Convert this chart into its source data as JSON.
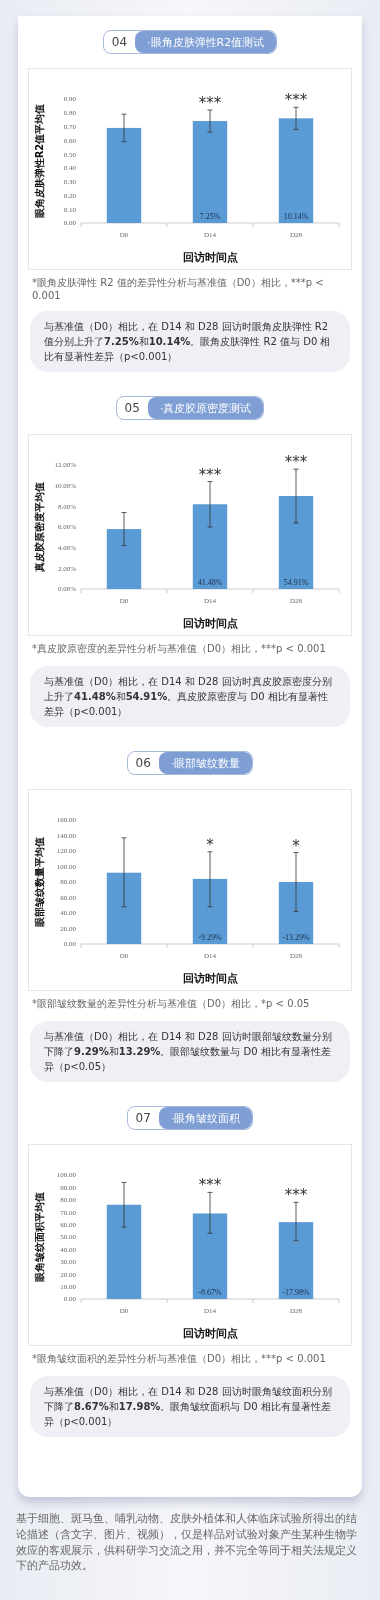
{
  "chart_data": [
    {
      "type": "bar",
      "subtitle": "04",
      "title": "·眼角皮肤弹性R2值测试",
      "ylabel": "眼角皮肤弹性R2值平均值",
      "xlabel": "回访时间点",
      "categories": [
        "D0",
        "D14",
        "D28"
      ],
      "values": [
        0.69,
        0.74,
        0.76
      ],
      "errors": [
        [
          0.59,
          0.79
        ],
        [
          0.66,
          0.82
        ],
        [
          0.68,
          0.84
        ]
      ],
      "color": "#5b9bd5",
      "ylim": [
        0,
        0.9
      ],
      "yticks": [
        {
          "value": 0,
          "label": "0.00"
        },
        {
          "value": 0.1,
          "label": "0.10"
        },
        {
          "value": 0.2,
          "label": "0.20"
        },
        {
          "value": 0.3,
          "label": "0.30"
        },
        {
          "value": 0.4,
          "label": "0.40"
        },
        {
          "value": 0.5,
          "label": "0.50"
        },
        {
          "value": 0.6,
          "label": "0.60"
        },
        {
          "value": 0.7,
          "label": "0.70"
        },
        {
          "value": 0.8,
          "label": "0.80"
        },
        {
          "value": 0.9,
          "label": "0.90"
        }
      ],
      "annotations": [
        {
          "text": "***",
          "x": "D14",
          "y": 0.82
        },
        {
          "text": "***",
          "x": "D28",
          "y": 0.84
        },
        {
          "text": "7.25%",
          "x": "D14",
          "y": 0
        },
        {
          "text": "10.14%",
          "x": "D28",
          "y": 0
        },
        "*眼角皮肤弹性 R2 值的差异性分析与基准值（D0）相比，***p < 0.001",
        "与基准值（D0）相比，在 D14 和 D28 回访时眼角皮肤弹性 R2 值分别上升了7.25%和10.14%。眼角皮肤弹性 R2 值与 D0 相比有显著性差异（p<0.001）"
      ]
    },
    {
      "type": "bar",
      "subtitle": "05",
      "title": "·真皮胶原密度测试",
      "ylabel": "真皮胶原密度平均值",
      "xlabel": "回访时间点",
      "categories": [
        "D0",
        "D14",
        "D28"
      ],
      "values": [
        5.8,
        8.2,
        9.0
      ],
      "errors": [
        [
          4.2,
          7.4
        ],
        [
          6.0,
          10.4
        ],
        [
          6.4,
          11.6
        ]
      ],
      "color": "#5b9bd5",
      "ylim": [
        0,
        12
      ],
      "yticks": [
        {
          "value": 0,
          "label": "0.00%"
        },
        {
          "value": 2,
          "label": "2.00%"
        },
        {
          "value": 4,
          "label": "4.00%"
        },
        {
          "value": 6,
          "label": "6.00%"
        },
        {
          "value": 8,
          "label": "8.00%"
        },
        {
          "value": 10,
          "label": "10.00%"
        },
        {
          "value": 12,
          "label": "12.00%"
        }
      ],
      "annotations": [
        {
          "text": "***",
          "x": "D14",
          "y": 10.4
        },
        {
          "text": "***",
          "x": "D28",
          "y": 11.6
        },
        {
          "text": "41.48%",
          "x": "D14",
          "y": 0
        },
        {
          "text": "54.91%",
          "x": "D28",
          "y": 0
        },
        "*真皮胶原密度的差异性分析与基准值（D0）相比，***p < 0.001",
        "与基准值（D0）相比，在 D14 和 D28 回访时真皮胶原密度分别上升了41.48%和54.91%。真皮胶原密度与 D0 相比有显著性差异（p<0.001）"
      ]
    },
    {
      "type": "bar",
      "subtitle": "06",
      "title": "·眼部皱纹数量",
      "ylabel": "眼部皱纹数量平均值",
      "xlabel": "回访时间点",
      "categories": [
        "D0",
        "D14",
        "D28"
      ],
      "values": [
        92,
        84,
        80
      ],
      "errors": [
        [
          48,
          137
        ],
        [
          48,
          119
        ],
        [
          42,
          118
        ]
      ],
      "color": "#5b9bd5",
      "ylim": [
        0,
        160
      ],
      "yticks": [
        {
          "value": 0,
          "label": "0.00"
        },
        {
          "value": 20,
          "label": "20.00"
        },
        {
          "value": 40,
          "label": "40.00"
        },
        {
          "value": 60,
          "label": "60.00"
        },
        {
          "value": 80,
          "label": "80.00"
        },
        {
          "value": 100,
          "label": "100.00"
        },
        {
          "value": 120,
          "label": "120.00"
        },
        {
          "value": 140,
          "label": "140.00"
        },
        {
          "value": 160,
          "label": "160.00"
        }
      ],
      "annotations": [
        {
          "text": "*",
          "x": "D14",
          "y": 119
        },
        {
          "text": "*",
          "x": "D28",
          "y": 118
        },
        {
          "text": "-9.29%",
          "x": "D14",
          "y": 0
        },
        {
          "text": "-13.29%",
          "x": "D28",
          "y": 0
        },
        "*眼部皱纹数量的差异性分析与基准值（D0）相比，*p < 0.05",
        "与基准值（D0）相比，在 D14 和 D28 回访时眼部皱纹数量分别下降了9.29%和13.29%。眼部皱纹数量与 D0 相比有显著性差异（p<0.05）"
      ]
    },
    {
      "type": "bar",
      "subtitle": "07",
      "title": "·眼角皱纹面积",
      "ylabel": "眼角皱纹面积平均值",
      "xlabel": "回访时间点",
      "categories": [
        "D0",
        "D14",
        "D28"
      ],
      "values": [
        76,
        69,
        62
      ],
      "errors": [
        [
          58,
          94
        ],
        [
          53,
          86
        ],
        [
          47,
          78
        ]
      ],
      "color": "#5b9bd5",
      "ylim": [
        0,
        100
      ],
      "yticks": [
        {
          "value": 0,
          "label": "0.00"
        },
        {
          "value": 10,
          "label": "10.00"
        },
        {
          "value": 20,
          "label": "20.00"
        },
        {
          "value": 30,
          "label": "30.00"
        },
        {
          "value": 40,
          "label": "40.00"
        },
        {
          "value": 50,
          "label": "50.00"
        },
        {
          "value": 60,
          "label": "60.00"
        },
        {
          "value": 70,
          "label": "70.00"
        },
        {
          "value": 80,
          "label": "80.00"
        },
        {
          "value": 90,
          "label": "90.00"
        },
        {
          "value": 100,
          "label": "100.00"
        }
      ],
      "annotations": [
        {
          "text": "***",
          "x": "D14",
          "y": 86
        },
        {
          "text": "***",
          "x": "D28",
          "y": 78
        },
        {
          "text": "-8.67%",
          "x": "D14",
          "y": 0
        },
        {
          "text": "-17.98%",
          "x": "D28",
          "y": 0
        },
        "*眼角皱纹面积的差异性分析与基准值（D0）相比，***p < 0.001",
        "与基准值（D0）相比，在 D14 和 D28 回访时眼角皱纹面积分别下降了8.67%和17.98%。眼角皱纹面积与 D0 相比有显著性差异（p<0.001）",
        "基于细胞、斑马鱼、哺乳动物、皮肤外植体和人体临床试验所得出的结论描述（含文字、图片、视频），仅是样品对试验对象产生某种生物学效应的客观展示，供科研学习交流之用，并不完全等同于相关法规定义下的产品功效。"
      ]
    }
  ]
}
